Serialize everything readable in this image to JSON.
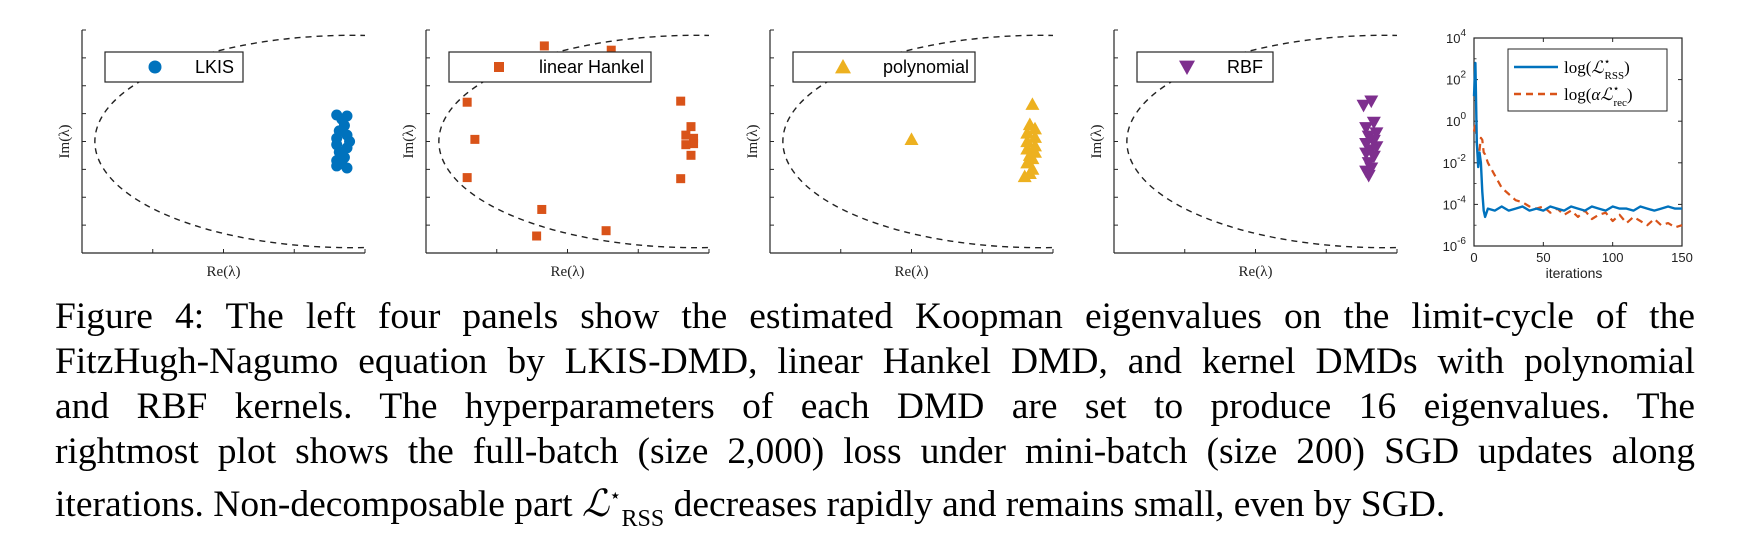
{
  "chart_data": [
    {
      "type": "scatter",
      "panel": "LKIS",
      "legend": "LKIS",
      "marker": "circle",
      "color": "#0072BD",
      "xlabel": "Re(λ)",
      "ylabel": "Im(λ)",
      "xlim": [
        -1.05,
        0.05
      ],
      "ylim": [
        -1.05,
        1.05
      ],
      "unit_circle": true,
      "points": [
        [
          -0.02,
          0.24
        ],
        [
          -0.04,
          0.21
        ],
        [
          -0.06,
          0.25
        ],
        [
          -0.03,
          0.15
        ],
        [
          -0.05,
          0.1
        ],
        [
          -0.02,
          0.06
        ],
        [
          -0.06,
          0.03
        ],
        [
          -0.01,
          0.0
        ],
        [
          -0.06,
          -0.03
        ],
        [
          -0.02,
          -0.06
        ],
        [
          -0.05,
          -0.1
        ],
        [
          -0.03,
          -0.15
        ],
        [
          -0.06,
          -0.18
        ],
        [
          -0.04,
          -0.21
        ],
        [
          -0.06,
          -0.23
        ],
        [
          -0.02,
          -0.25
        ]
      ]
    },
    {
      "type": "scatter",
      "panel": "linear Hankel",
      "legend": "linear Hankel",
      "marker": "square",
      "color": "#D95319",
      "xlabel": "Re(λ)",
      "ylabel": "Im(λ)",
      "xlim": [
        -1.05,
        0.05
      ],
      "ylim": [
        -1.05,
        1.05
      ],
      "unit_circle": true,
      "points": [
        [
          -0.59,
          0.9
        ],
        [
          -0.33,
          0.86
        ],
        [
          -0.89,
          0.37
        ],
        [
          -0.86,
          0.02
        ],
        [
          -0.89,
          -0.34
        ],
        [
          -0.6,
          -0.64
        ],
        [
          -0.62,
          -0.89
        ],
        [
          -0.35,
          -0.84
        ],
        [
          -0.06,
          0.38
        ],
        [
          -0.02,
          0.14
        ],
        [
          -0.01,
          0.03
        ],
        [
          -0.04,
          0.06
        ],
        [
          -0.01,
          -0.02
        ],
        [
          -0.04,
          -0.03
        ],
        [
          -0.02,
          -0.13
        ],
        [
          -0.06,
          -0.35
        ]
      ]
    },
    {
      "type": "scatter",
      "panel": "polynomial",
      "legend": "polynomial",
      "marker": "triangle-up",
      "color": "#EDB120",
      "xlabel": "Re(λ)",
      "ylabel": "Im(λ)",
      "xlim": [
        -1.05,
        0.05
      ],
      "ylim": [
        -1.05,
        1.05
      ],
      "unit_circle": true,
      "points": [
        [
          -0.5,
          0.02
        ],
        [
          -0.03,
          0.35
        ],
        [
          -0.04,
          0.16
        ],
        [
          -0.02,
          0.12
        ],
        [
          -0.05,
          0.08
        ],
        [
          -0.02,
          0.04
        ],
        [
          -0.05,
          0.0
        ],
        [
          -0.02,
          -0.04
        ],
        [
          -0.05,
          -0.07
        ],
        [
          -0.02,
          -0.1
        ],
        [
          -0.04,
          -0.13
        ],
        [
          -0.03,
          -0.16
        ],
        [
          -0.05,
          -0.2
        ],
        [
          -0.03,
          -0.26
        ],
        [
          -0.04,
          -0.3
        ],
        [
          -0.06,
          -0.33
        ]
      ]
    },
    {
      "type": "scatter",
      "panel": "RBF",
      "legend": "RBF",
      "marker": "triangle-down",
      "color": "#7E2F8E",
      "xlabel": "Re(λ)",
      "ylabel": "Im(λ)",
      "xlim": [
        -1.05,
        0.05
      ],
      "ylim": [
        -1.05,
        1.05
      ],
      "unit_circle": true,
      "points": [
        [
          -0.05,
          0.38
        ],
        [
          -0.08,
          0.34
        ],
        [
          -0.04,
          0.18
        ],
        [
          -0.07,
          0.13
        ],
        [
          -0.03,
          0.08
        ],
        [
          -0.06,
          0.05
        ],
        [
          -0.04,
          0.01
        ],
        [
          -0.07,
          -0.02
        ],
        [
          -0.03,
          -0.05
        ],
        [
          -0.05,
          -0.08
        ],
        [
          -0.07,
          -0.11
        ],
        [
          -0.04,
          -0.14
        ],
        [
          -0.06,
          -0.2
        ],
        [
          -0.05,
          -0.25
        ],
        [
          -0.07,
          -0.28
        ],
        [
          -0.06,
          -0.32
        ]
      ]
    },
    {
      "type": "line",
      "panel": "loss",
      "xlabel": "iterations",
      "xlim": [
        0,
        150
      ],
      "ylim_log10": [
        -6,
        4
      ],
      "xticks": [
        0,
        50,
        100,
        150
      ],
      "yticks": [
        "10^4",
        "10^2",
        "10^0",
        "10^-2",
        "10^-4",
        "10^-6"
      ],
      "series": [
        {
          "name": "log(L*RSS)",
          "label_main": "log(",
          "label_sym": "ℒ",
          "label_sup": "⋆",
          "label_sub": "RSS",
          "label_end": ")",
          "color": "#0072BD",
          "dash": "solid",
          "x": [
            0,
            1,
            2,
            3,
            4,
            5,
            6,
            7,
            8,
            10,
            15,
            20,
            25,
            30,
            35,
            40,
            45,
            50,
            55,
            60,
            65,
            70,
            75,
            80,
            85,
            90,
            95,
            100,
            105,
            110,
            115,
            120,
            125,
            130,
            135,
            140,
            145,
            150
          ],
          "log10_y": [
            1.2,
            2.8,
            -1.0,
            -2.2,
            -1.5,
            -2.0,
            -3.4,
            -4.3,
            -4.6,
            -4.2,
            -4.3,
            -4.1,
            -4.3,
            -4.2,
            -4.1,
            -4.3,
            -4.2,
            -4.3,
            -4.1,
            -4.2,
            -4.3,
            -4.1,
            -4.2,
            -4.3,
            -4.1,
            -4.2,
            -4.3,
            -4.1,
            -4.2,
            -4.2,
            -4.3,
            -4.1,
            -4.2,
            -4.3,
            -4.2,
            -4.1,
            -4.2,
            -4.2
          ]
        },
        {
          "name": "log(alpha L*rec)",
          "label_main": "log(",
          "label_alpha": "α",
          "label_sym": "ℒ",
          "label_sup": "⋆",
          "label_sub": "rec",
          "label_end": ")",
          "color": "#D95319",
          "dash": "dashed",
          "x": [
            0,
            1,
            2,
            3,
            4,
            5,
            6,
            7,
            8,
            10,
            15,
            20,
            25,
            30,
            35,
            40,
            45,
            50,
            55,
            60,
            65,
            70,
            75,
            80,
            85,
            90,
            95,
            100,
            105,
            110,
            115,
            120,
            125,
            130,
            135,
            140,
            145,
            150
          ],
          "log10_y": [
            -0.5,
            -0.1,
            -1.0,
            -2.0,
            -1.4,
            -0.8,
            -0.9,
            -1.5,
            -1.6,
            -2.0,
            -2.6,
            -3.2,
            -3.5,
            -3.8,
            -3.9,
            -4.1,
            -4.2,
            -4.1,
            -4.4,
            -4.2,
            -4.5,
            -4.3,
            -4.6,
            -4.3,
            -4.7,
            -4.5,
            -4.4,
            -4.8,
            -4.5,
            -4.9,
            -4.6,
            -4.8,
            -5.0,
            -4.7,
            -5.0,
            -4.9,
            -5.1,
            -5.0
          ]
        }
      ]
    }
  ],
  "caption": {
    "lines": [
      "Figure 4: The left four panels show the estimated Koopman eigenvalues on the limit-cycle of the",
      "FitzHugh-Nagumo equation by LKIS-DMD, linear Hankel DMD, and kernel DMDs with polynomial",
      "and RBF kernels.  The hyperparameters of each DMD are set to produce 16 eigenvalues.  The",
      "rightmost plot shows the full-batch (size 2,000) loss under mini-batch (size 200) SGD updates along"
    ],
    "last_pre": "iterations. Non-decomposable part ",
    "last_sym": "ℒ",
    "last_sup": "⋆",
    "last_sub": "RSS",
    "last_post": " decreases rapidly and remains small, even by SGD."
  }
}
